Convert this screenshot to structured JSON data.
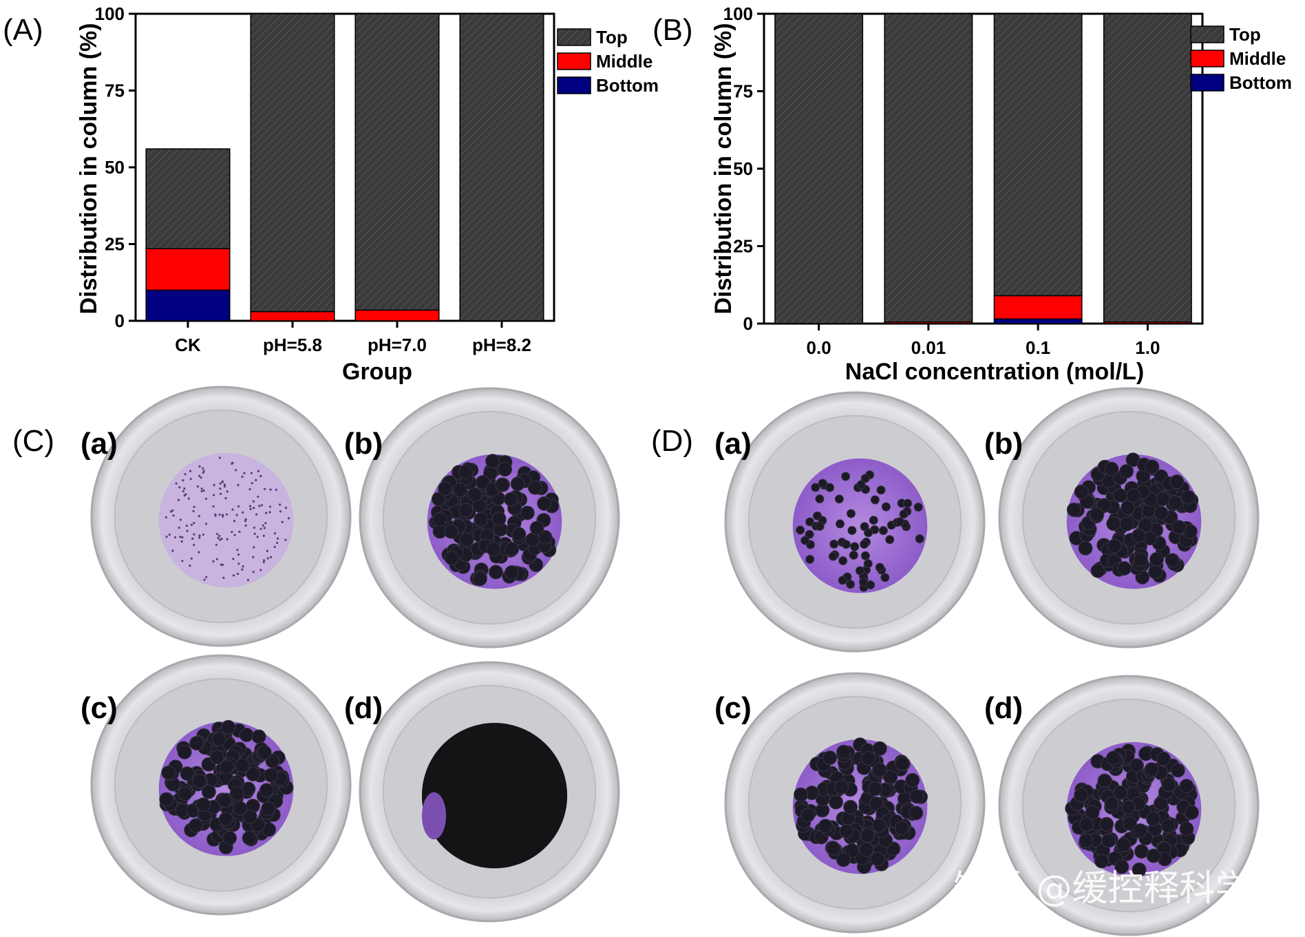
{
  "colors": {
    "top": "#3a3a3a",
    "middle": "#ff0000",
    "bottom": "#000080",
    "cup_rim": "#d6d6da",
    "cup_inner": "#c8c8cc",
    "purple": "#9f6fd8",
    "pellet": "#1c1a26"
  },
  "chart_data": [
    {
      "panel": "(A)",
      "type": "bar",
      "stacked": true,
      "categories": [
        "CK",
        "pH=5.8",
        "pH=7.0",
        "pH=8.2"
      ],
      "series": [
        {
          "name": "Bottom",
          "values": [
            10,
            0,
            0,
            0
          ]
        },
        {
          "name": "Middle",
          "values": [
            13.5,
            3,
            3.5,
            0
          ]
        },
        {
          "name": "Top",
          "values": [
            32.5,
            97,
            96.5,
            100
          ]
        }
      ],
      "xlabel": "Group",
      "ylabel": "Distribution in column (%)",
      "ylim": [
        0,
        100
      ],
      "yticks": [
        "0",
        "25",
        "50",
        "75",
        "100"
      ],
      "legend_placement": "top-right",
      "grid": false
    },
    {
      "panel": "(B)",
      "type": "bar",
      "stacked": true,
      "categories": [
        "0.0",
        "0.01",
        "0.1",
        "1.0"
      ],
      "series": [
        {
          "name": "Bottom",
          "values": [
            0,
            0,
            1.5,
            0
          ]
        },
        {
          "name": "Middle",
          "values": [
            0,
            0.5,
            7.5,
            0.5
          ]
        },
        {
          "name": "Top",
          "values": [
            100,
            99.5,
            91,
            99.5
          ]
        }
      ],
      "xlabel": "NaCl concentration (mol/L)",
      "ylabel": "Distribution in column (%)",
      "ylim": [
        0,
        100
      ],
      "yticks": [
        "0",
        "25",
        "50",
        "75",
        "100"
      ],
      "legend_placement": "top-right",
      "grid": false
    }
  ],
  "photos": {
    "C": {
      "label": "(C)",
      "cups": [
        {
          "label": "(a)",
          "content": "purple-stain"
        },
        {
          "label": "(b)",
          "content": "pellets"
        },
        {
          "label": "(c)",
          "content": "pellets"
        },
        {
          "label": "(d)",
          "content": "dark-film"
        }
      ]
    },
    "D": {
      "label": "(D)",
      "cups": [
        {
          "label": "(a)",
          "content": "scattered-pellets"
        },
        {
          "label": "(b)",
          "content": "pellets"
        },
        {
          "label": "(c)",
          "content": "pellets"
        },
        {
          "label": "(d)",
          "content": "pellets"
        }
      ]
    }
  },
  "watermark": "知乎 @缓控释科学"
}
